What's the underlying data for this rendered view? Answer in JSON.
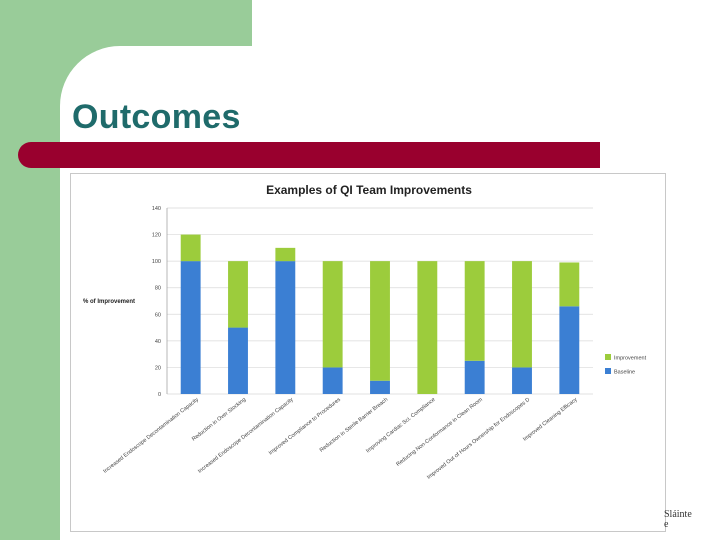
{
  "slide": {
    "title": "Outcomes",
    "logo_text": "Sláinte\ne"
  },
  "colors": {
    "left_band": "#99cc99",
    "title": "#1f6b6b",
    "accent_bar": "#99002e",
    "baseline": "#3b7fd3",
    "improvement": "#9ccc3c"
  },
  "chart_data": {
    "type": "bar",
    "stacked": true,
    "title": "Examples of QI Team Improvements",
    "ylabel": "% of Improvement",
    "xlabel": "",
    "ylim": [
      0,
      140
    ],
    "yticks": [
      0,
      20,
      40,
      60,
      80,
      100,
      120,
      140
    ],
    "grid": true,
    "legend_position": "right",
    "categories": [
      "Increased Endoscope Decontamination Capacity",
      "Reduction in Over Stocking",
      "Increased Endoscope Decontamination Capacity",
      "Improved Compliance to Procedures",
      "Reduction in Sterile Barrier Breach",
      "Improving Cardiac Sci. Compliance",
      "Reducing Non-Conformance in Clean Room",
      "Improved Out of Hours Ownership for Endoscopes D",
      "Improved Cleaning Efficacy"
    ],
    "series": [
      {
        "name": "Baseline",
        "values": [
          100,
          50,
          100,
          20,
          10,
          0,
          25,
          20,
          66
        ]
      },
      {
        "name": "Improvement",
        "values": [
          20,
          50,
          10,
          80,
          90,
          100,
          75,
          80,
          33
        ]
      }
    ]
  }
}
